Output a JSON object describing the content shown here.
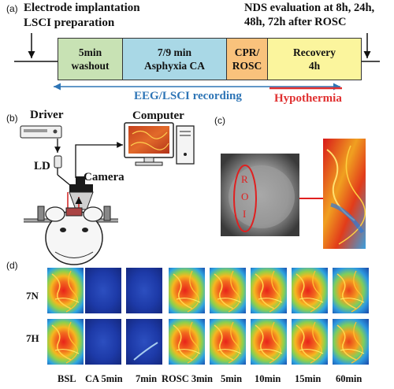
{
  "panel_a": {
    "label": "(a)",
    "top_left_lines": [
      "Electrode implantation",
      "LSCI preparation"
    ],
    "top_right_lines": [
      "NDS evaluation at 8h, 24h,",
      "48h, 72h after ROSC"
    ],
    "segments": [
      {
        "lines": [
          "5min",
          "washout"
        ],
        "color": "#c8e2b4"
      },
      {
        "lines": [
          "7/9 min",
          "Asphyxia CA"
        ],
        "color": "#a9d8e6"
      },
      {
        "lines": [
          "CPR/",
          "ROSC"
        ],
        "color": "#f9c27c"
      },
      {
        "lines": [
          "Recovery",
          "4h"
        ],
        "color": "#fbf59d"
      }
    ],
    "recording_label": "EEG/LSCI recording",
    "hypothermia_label": "Hypothermia",
    "colors": {
      "recording": "#2e75b6",
      "hypothermia": "#e03030"
    }
  },
  "panel_b": {
    "label": "(b)",
    "driver_label": "Driver",
    "ld_label": "LD",
    "camera_label": "Camera",
    "computer_label": "Computer"
  },
  "panel_c": {
    "label": "(c)",
    "roi_letters": [
      "R",
      "O",
      "I"
    ],
    "roi_color": "#e02020"
  },
  "panel_d": {
    "label": "(d)",
    "rows": [
      "7N",
      "7H"
    ],
    "columns": [
      "BSL",
      "CA 5min",
      "7min",
      "ROSC 3min",
      "5min",
      "10min",
      "15min",
      "60min"
    ],
    "column_states": [
      "high",
      "low",
      "low",
      "high",
      "high",
      "high",
      "high",
      "mid"
    ]
  }
}
